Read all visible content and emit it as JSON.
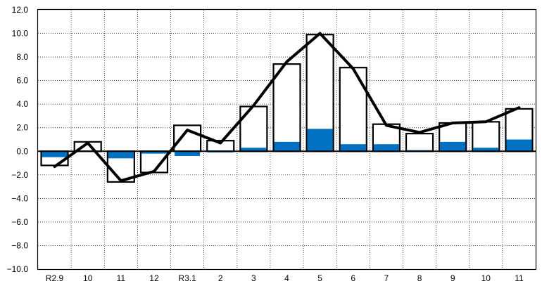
{
  "chart_data": {
    "type": "bar",
    "title": "",
    "xlabel": "",
    "ylabel": "",
    "ylim": [
      -10,
      12
    ],
    "yticks": [
      "12.0",
      "10.0",
      "8.0",
      "6.0",
      "4.0",
      "2.0",
      "0.0",
      "−2.0",
      "−4.0",
      "−6.0",
      "−8.0",
      "−10.0"
    ],
    "categories": [
      "R2.9",
      "10",
      "11",
      "12",
      "R3.1",
      "2",
      "3",
      "4",
      "5",
      "6",
      "7",
      "8",
      "9",
      "10",
      "11"
    ],
    "grid": true,
    "legend": "none",
    "series": [
      {
        "kind": "bar-outline",
        "color": "#000000",
        "values": [
          -1.2,
          0.8,
          -2.6,
          -1.8,
          2.2,
          0.9,
          3.8,
          7.4,
          9.9,
          7.1,
          2.3,
          1.5,
          2.4,
          2.5,
          3.6
        ]
      },
      {
        "kind": "bar-fill",
        "color": "#0070C0",
        "values": [
          -0.5,
          0.0,
          -0.6,
          -0.2,
          -0.4,
          -0.1,
          0.3,
          0.8,
          1.9,
          0.6,
          0.6,
          0.1,
          0.8,
          0.3,
          1.0
        ]
      },
      {
        "kind": "line",
        "color": "#000000",
        "values": [
          -1.3,
          0.7,
          -2.5,
          -1.7,
          1.8,
          0.7,
          3.9,
          7.6,
          10.0,
          7.0,
          2.2,
          1.6,
          2.4,
          2.5,
          3.7
        ]
      }
    ]
  }
}
